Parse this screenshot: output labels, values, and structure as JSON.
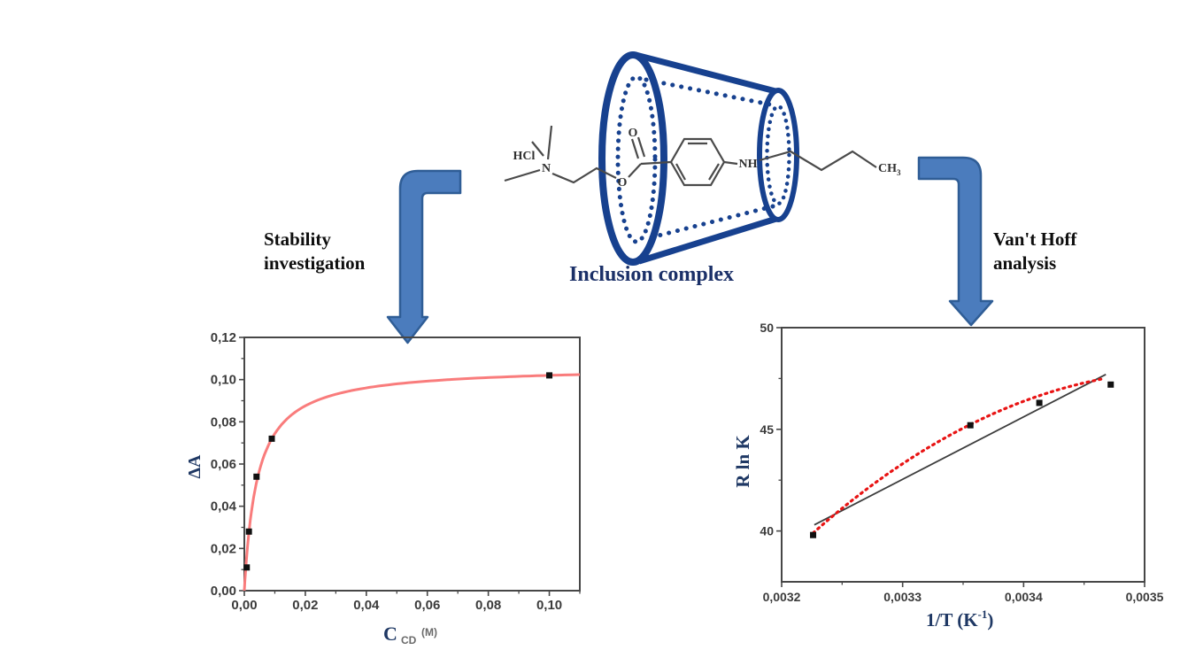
{
  "labels": {
    "stability_line1": "Stability",
    "stability_line2": "investigation",
    "vant_hoff_line1": "Van't Hoff",
    "vant_hoff_line2": "analysis",
    "inclusion_complex": "Inclusion complex"
  },
  "molecule": {
    "hcl": "HCl",
    "n": "N",
    "carbonyl_o": "O",
    "ester_o": "O",
    "nh": "NH",
    "ch": "CH",
    "ch_sub": "3"
  },
  "colors": {
    "arrow_fill": "#4b7cbd",
    "arrow_stroke": "#2f5d96",
    "cyclodextrin_blue": "#17418f",
    "molecule_gray": "#4a4a4a",
    "label_navy": "#1f3864",
    "fit_curve_red": "#f97c7c",
    "dotted_fit_red": "#e81414",
    "linear_fit_gray": "#3d3d3d",
    "marker_black": "#111111",
    "frame_gray": "#474747",
    "tick_text": "#3b3b3b"
  },
  "chart_data": [
    {
      "type": "scatter",
      "title": "",
      "ylabel": "ΔA",
      "xlabel_parts": {
        "main": "C",
        "sub": "CD",
        "unit": "(M)"
      },
      "xlim": [
        0,
        0.11
      ],
      "ylim": [
        0,
        0.12
      ],
      "grid": false,
      "x_ticks": {
        "values": [
          0,
          0.02,
          0.04,
          0.06,
          0.08,
          0.1
        ],
        "labels": [
          "0,00",
          "0,02",
          "0,04",
          "0,06",
          "0,08",
          "0,10"
        ]
      },
      "y_ticks": {
        "values": [
          0,
          0.02,
          0.04,
          0.06,
          0.08,
          0.1,
          0.12
        ],
        "labels": [
          "0,00",
          "0,02",
          "0,04",
          "0,06",
          "0,08",
          "0,10",
          "0,12"
        ]
      },
      "points": [
        [
          0.0008,
          0.011
        ],
        [
          0.0015,
          0.028
        ],
        [
          0.004,
          0.054
        ],
        [
          0.009,
          0.072
        ],
        [
          0.1,
          0.102
        ]
      ],
      "fit_curve": {
        "model": "saturation y=A*x/(B+x)",
        "A": 0.1064,
        "B": 0.0043
      },
      "marker": "black-square"
    },
    {
      "type": "scatter",
      "title": "",
      "ylabel": "R ln K",
      "xlabel_parts": {
        "main": "1/T (K",
        "sup": "-1",
        "close": ")"
      },
      "xlim": [
        0.0032,
        0.0035
      ],
      "ylim": [
        37.5,
        50
      ],
      "grid": false,
      "x_ticks": {
        "values": [
          0.0032,
          0.0033,
          0.0034,
          0.0035
        ],
        "labels": [
          "0,0032",
          "0,0033",
          "0,0034",
          "0,0035"
        ]
      },
      "y_ticks": {
        "values": [
          40,
          45,
          50
        ],
        "labels": [
          "40",
          "45",
          "50"
        ]
      },
      "points": [
        [
          0.003226,
          39.8
        ],
        [
          0.003356,
          45.2
        ],
        [
          0.003413,
          46.3
        ],
        [
          0.003472,
          47.2
        ]
      ],
      "linear_fit": {
        "x1": 0.003227,
        "y1": 40.3,
        "x2": 0.003468,
        "y2": 47.7
      },
      "dotted_fit": {
        "points": [
          [
            0.003226,
            39.9
          ],
          [
            0.003345,
            44.9
          ],
          [
            0.003467,
            47.5
          ]
        ],
        "style": "dotted"
      },
      "marker": "black-square"
    }
  ]
}
